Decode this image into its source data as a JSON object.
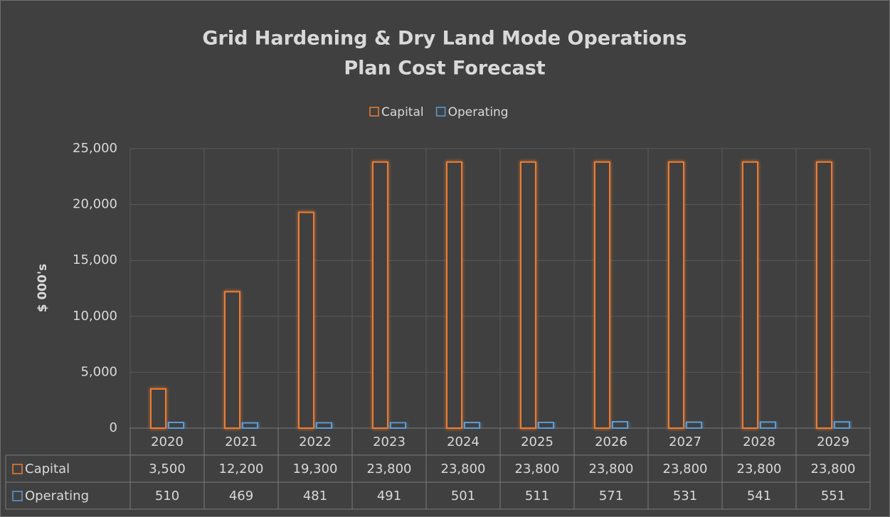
{
  "chart_data": {
    "type": "bar",
    "title": [
      "Grid Hardening & Dry Land Mode Operations",
      "Plan Cost Forecast"
    ],
    "y_label": "$ 000's",
    "categories": [
      "2020",
      "2021",
      "2022",
      "2023",
      "2024",
      "2025",
      "2026",
      "2027",
      "2028",
      "2029"
    ],
    "series": [
      {
        "name": "Capital",
        "color": "#ed7d31",
        "values": [
          3500,
          12200,
          19300,
          23800,
          23800,
          23800,
          23800,
          23800,
          23800,
          23800
        ],
        "value_labels": [
          "3,500",
          "12,200",
          "19,300",
          "23,800",
          "23,800",
          "23,800",
          "23,800",
          "23,800",
          "23,800",
          "23,800"
        ]
      },
      {
        "name": "Operating",
        "color": "#5b9bd5",
        "values": [
          510,
          469,
          481,
          491,
          501,
          511,
          571,
          531,
          541,
          551
        ],
        "value_labels": [
          "510",
          "469",
          "481",
          "491",
          "501",
          "511",
          "571",
          "531",
          "541",
          "551"
        ]
      }
    ],
    "ylim": [
      0,
      25000
    ],
    "yticks": [
      0,
      {
        "value": 5000,
        "label": "5,000"
      },
      {
        "value": 10000,
        "label": "10,000"
      },
      {
        "value": 15000,
        "label": "15,000"
      },
      {
        "value": 20000,
        "label": "20,000"
      },
      {
        "value": 25000,
        "label": "25,000"
      }
    ],
    "grid": true,
    "legend": "top"
  }
}
